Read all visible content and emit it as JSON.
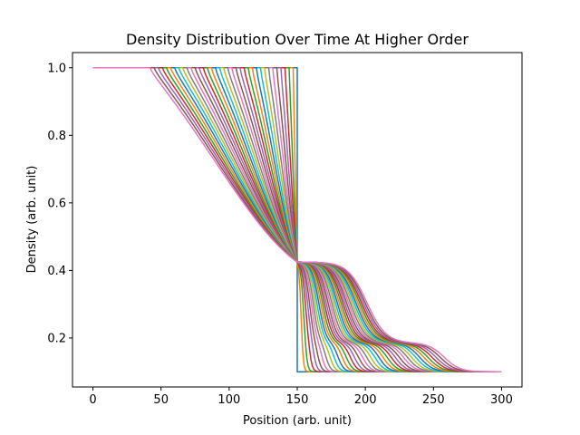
{
  "chart_data": {
    "type": "line",
    "title": "Density Distribution Over Time At Higher Order",
    "xlabel": "Position (arb. unit)",
    "ylabel": "Density (arb. unit)",
    "xlim": [
      -15,
      315
    ],
    "ylim": [
      0.055,
      1.045
    ],
    "x_ticks": [
      0,
      50,
      100,
      150,
      200,
      250,
      300
    ],
    "y_ticks": [
      0.2,
      0.4,
      0.6,
      0.8,
      1.0
    ],
    "x_tick_labels": [
      "0",
      "50",
      "100",
      "150",
      "200",
      "250",
      "300"
    ],
    "y_tick_labels": [
      "0.2",
      "0.4",
      "0.6",
      "0.8",
      "1.0"
    ],
    "grid": false,
    "legend": "none",
    "domain": [
      0,
      300
    ],
    "shock_start": 150,
    "left_density": 1.0,
    "middle_density": 0.425,
    "low_density": 0.185,
    "right_density": 0.1,
    "num_series": 37,
    "colors": [
      "#1f77b4",
      "#ff7f0e",
      "#2ca02c",
      "#d62728",
      "#9467bd",
      "#8c564b",
      "#e377c2",
      "#7f7f7f",
      "#bcbd22",
      "#17becf"
    ],
    "series": [
      {
        "rarefaction_head": 150,
        "plateau_end": 150,
        "shock_position": 150,
        "smoothing": 0
      },
      {
        "rarefaction_head": 147,
        "plateau_end": 151,
        "shock_position": 153,
        "smoothing": 1.5
      },
      {
        "rarefaction_head": 144,
        "plateau_end": 152,
        "shock_position": 156,
        "smoothing": 2
      },
      {
        "rarefaction_head": 141,
        "plateau_end": 153,
        "shock_position": 159,
        "smoothing": 2.5
      },
      {
        "rarefaction_head": 138,
        "plateau_end": 154,
        "shock_position": 162,
        "smoothing": 3
      },
      {
        "rarefaction_head": 135,
        "plateau_end": 155,
        "shock_position": 165,
        "smoothing": 3.3
      },
      {
        "rarefaction_head": 132,
        "plateau_end": 156,
        "shock_position": 168,
        "smoothing": 3.6
      },
      {
        "rarefaction_head": 129,
        "plateau_end": 157,
        "shock_position": 171,
        "smoothing": 3.9
      },
      {
        "rarefaction_head": 126,
        "plateau_end": 158,
        "shock_position": 174,
        "smoothing": 4.2
      },
      {
        "rarefaction_head": 123,
        "plateau_end": 159,
        "shock_position": 177,
        "smoothing": 4.5
      },
      {
        "rarefaction_head": 120,
        "plateau_end": 160,
        "shock_position": 180,
        "smoothing": 4.8
      },
      {
        "rarefaction_head": 117,
        "plateau_end": 161,
        "shock_position": 183,
        "smoothing": 5.1
      },
      {
        "rarefaction_head": 114,
        "plateau_end": 162,
        "shock_position": 186,
        "smoothing": 5.4
      },
      {
        "rarefaction_head": 111,
        "plateau_end": 163,
        "shock_position": 189,
        "smoothing": 5.7
      },
      {
        "rarefaction_head": 108,
        "plateau_end": 164,
        "shock_position": 192,
        "smoothing": 6
      },
      {
        "rarefaction_head": 105,
        "plateau_end": 165,
        "shock_position": 195,
        "smoothing": 6.3
      },
      {
        "rarefaction_head": 102,
        "plateau_end": 166,
        "shock_position": 198,
        "smoothing": 6.6
      },
      {
        "rarefaction_head": 99,
        "plateau_end": 167,
        "shock_position": 201,
        "smoothing": 6.9
      },
      {
        "rarefaction_head": 96,
        "plateau_end": 168,
        "shock_position": 204,
        "smoothing": 7.2
      },
      {
        "rarefaction_head": 93,
        "plateau_end": 169,
        "shock_position": 207,
        "smoothing": 7.5
      },
      {
        "rarefaction_head": 90,
        "plateau_end": 170,
        "shock_position": 210,
        "smoothing": 7.8
      },
      {
        "rarefaction_head": 87,
        "plateau_end": 171,
        "shock_position": 213,
        "smoothing": 8.1
      },
      {
        "rarefaction_head": 84,
        "plateau_end": 172,
        "shock_position": 216,
        "smoothing": 8.4
      },
      {
        "rarefaction_head": 81,
        "plateau_end": 173,
        "shock_position": 219,
        "smoothing": 8.7
      },
      {
        "rarefaction_head": 78,
        "plateau_end": 174,
        "shock_position": 222,
        "smoothing": 9
      },
      {
        "rarefaction_head": 75,
        "plateau_end": 175,
        "shock_position": 225,
        "smoothing": 9.3
      },
      {
        "rarefaction_head": 72,
        "plateau_end": 176,
        "shock_position": 228,
        "smoothing": 9.6
      },
      {
        "rarefaction_head": 69,
        "plateau_end": 177,
        "shock_position": 231,
        "smoothing": 9.9
      },
      {
        "rarefaction_head": 66,
        "plateau_end": 178,
        "shock_position": 234,
        "smoothing": 10.2
      },
      {
        "rarefaction_head": 63,
        "plateau_end": 179,
        "shock_position": 237,
        "smoothing": 10.5
      },
      {
        "rarefaction_head": 60,
        "plateau_end": 180,
        "shock_position": 240,
        "smoothing": 10.8
      },
      {
        "rarefaction_head": 57,
        "plateau_end": 181,
        "shock_position": 243,
        "smoothing": 11.1
      },
      {
        "rarefaction_head": 54,
        "plateau_end": 182,
        "shock_position": 246,
        "smoothing": 11.4
      },
      {
        "rarefaction_head": 51,
        "plateau_end": 183,
        "shock_position": 249,
        "smoothing": 11.7
      },
      {
        "rarefaction_head": 48,
        "plateau_end": 184,
        "shock_position": 252,
        "smoothing": 12
      },
      {
        "rarefaction_head": 45,
        "plateau_end": 185,
        "shock_position": 255,
        "smoothing": 12.3
      },
      {
        "rarefaction_head": 42,
        "plateau_end": 186,
        "shock_position": 258,
        "smoothing": 12.6
      }
    ]
  }
}
